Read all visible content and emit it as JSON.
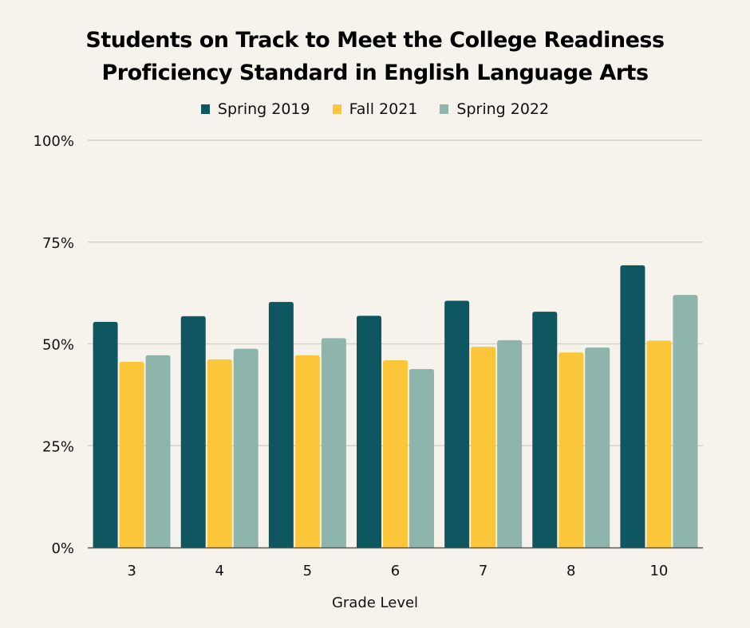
{
  "chart_data": {
    "type": "bar",
    "title_lines": [
      "Students on Track to Meet the College Readiness",
      "Proficiency Standard in English Language Arts"
    ],
    "xlabel": "Grade Level",
    "ylabel": "",
    "categories": [
      "3",
      "4",
      "5",
      "6",
      "7",
      "8",
      "10"
    ],
    "series": [
      {
        "name": "Spring 2019",
        "color": "#0e5760",
        "values": [
          55.4,
          56.8,
          60.3,
          56.9,
          60.6,
          57.9,
          69.3
        ]
      },
      {
        "name": "Fall 2021",
        "color": "#fbc63a",
        "values": [
          45.6,
          46.2,
          47.2,
          46.0,
          49.3,
          47.9,
          50.8
        ]
      },
      {
        "name": "Spring 2022",
        "color": "#8db5ab",
        "values": [
          47.2,
          48.8,
          51.4,
          43.8,
          50.9,
          49.1,
          62.0
        ]
      }
    ],
    "ylim": [
      0,
      100
    ],
    "yticks": [
      0,
      25,
      50,
      75,
      100
    ],
    "ytick_labels": [
      "0%",
      "25%",
      "50%",
      "75%",
      "100%"
    ],
    "grid": true,
    "legend_position": "top-center"
  }
}
